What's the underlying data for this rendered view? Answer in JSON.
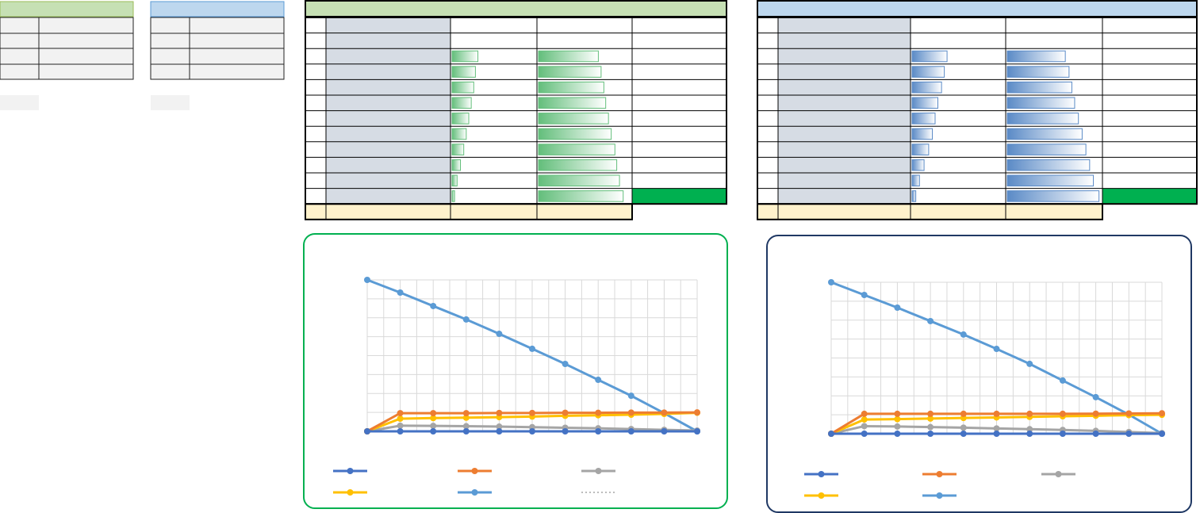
{
  "bar_tables": [
    {
      "column_1": [
        31,
        28,
        26,
        23,
        20,
        17,
        14,
        10,
        6,
        3
      ],
      "column_2": [
        65,
        68,
        71,
        73,
        76,
        79,
        83,
        85,
        88,
        92
      ],
      "color": "#63be7b"
    },
    {
      "column_1": [
        38,
        35,
        32,
        28,
        25,
        22,
        18,
        13,
        8,
        4
      ],
      "column_2": [
        62,
        66,
        69,
        72,
        76,
        80,
        84,
        88,
        92,
        98
      ],
      "color": "#5a8ac6"
    }
  ],
  "charts": [
    {
      "type": "line",
      "grid": true,
      "x": [
        0,
        1,
        2,
        3,
        4,
        5,
        6,
        7,
        8,
        9,
        10
      ],
      "xlim": [
        0,
        10
      ],
      "ylim": [
        0,
        8
      ],
      "xticks": [
        0,
        0.5,
        1,
        1.5,
        2,
        2.5,
        3,
        3.5,
        4,
        4.5,
        5,
        5.5,
        6,
        6.5,
        7,
        7.5,
        8,
        8.5,
        9,
        9.5,
        10
      ],
      "yticks": [
        0,
        1,
        2,
        3,
        4,
        5,
        6,
        7,
        8
      ],
      "series": [
        {
          "color": "#4472c4",
          "values": [
            0,
            0,
            0,
            0,
            0,
            0,
            0,
            0,
            0,
            0,
            0
          ]
        },
        {
          "color": "#ed7d31",
          "values": [
            0,
            0.96,
            0.96,
            0.96,
            0.97,
            0.97,
            0.98,
            0.98,
            0.99,
            0.99,
            1.0
          ]
        },
        {
          "color": "#a5a5a5",
          "values": [
            0,
            0.3,
            0.29,
            0.27,
            0.25,
            0.22,
            0.19,
            0.16,
            0.12,
            0.08,
            0.04
          ]
        },
        {
          "color": "#ffc000",
          "values": [
            0,
            0.67,
            0.7,
            0.72,
            0.75,
            0.78,
            0.82,
            0.85,
            0.88,
            0.92,
            0.98
          ]
        },
        {
          "color": "#5b9bd5",
          "values": [
            8,
            7.33,
            6.62,
            5.91,
            5.15,
            4.36,
            3.56,
            2.72,
            1.88,
            0.96,
            0
          ]
        }
      ]
    },
    {
      "type": "line",
      "grid": true,
      "x": [
        0,
        1,
        2,
        3,
        4,
        5,
        6,
        7,
        8,
        9,
        10
      ],
      "xlim": [
        0,
        10
      ],
      "ylim": [
        0,
        8
      ],
      "xticks": [
        0,
        0.5,
        1,
        1.5,
        2,
        2.5,
        3,
        3.5,
        4,
        4.5,
        5,
        5.5,
        6,
        6.5,
        7,
        7.5,
        8,
        8.5,
        9,
        9.5,
        10
      ],
      "yticks": [
        0,
        1,
        2,
        3,
        4,
        5,
        6,
        7,
        8
      ],
      "series": [
        {
          "color": "#4472c4",
          "values": [
            0,
            0,
            0,
            0,
            0,
            0,
            0,
            0,
            0,
            0,
            0
          ]
        },
        {
          "color": "#ed7d31",
          "values": [
            0,
            1.05,
            1.05,
            1.05,
            1.05,
            1.05,
            1.05,
            1.05,
            1.06,
            1.07,
            1.08
          ]
        },
        {
          "color": "#a5a5a5",
          "values": [
            0,
            0.4,
            0.38,
            0.35,
            0.32,
            0.28,
            0.24,
            0.2,
            0.15,
            0.09,
            0.03
          ]
        },
        {
          "color": "#ffc000",
          "values": [
            0,
            0.75,
            0.77,
            0.8,
            0.83,
            0.86,
            0.89,
            0.92,
            0.95,
            0.98,
            1.0
          ]
        },
        {
          "color": "#5b9bd5",
          "values": [
            8,
            7.33,
            6.66,
            5.95,
            5.24,
            4.48,
            3.69,
            2.81,
            1.93,
            1.01,
            0
          ]
        }
      ]
    }
  ]
}
